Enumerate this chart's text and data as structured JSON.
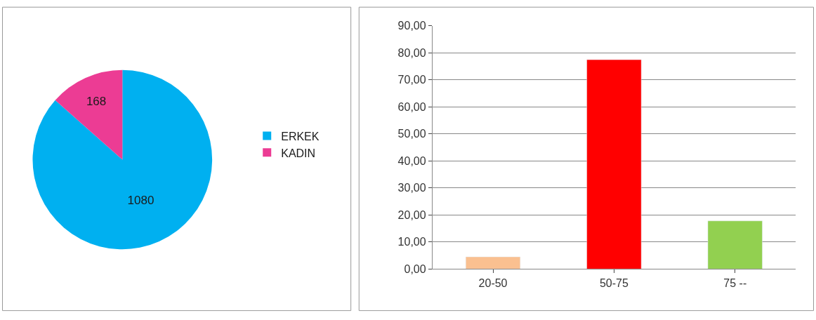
{
  "chart_data": [
    {
      "type": "pie",
      "categories": [
        "ERKEK",
        "KADIN"
      ],
      "values": [
        1080,
        168
      ],
      "colors": [
        "#00b0f0",
        "#ec3c94"
      ],
      "data_labels": true,
      "legend": "right"
    },
    {
      "type": "bar",
      "categories": [
        "20-50",
        "50-75",
        "75 --"
      ],
      "values": [
        4.5,
        77.4,
        17.8
      ],
      "colors": [
        "#fac090",
        "#ff0000",
        "#92d050"
      ],
      "ylim": [
        0,
        90
      ],
      "yticks": [
        {
          "value": 0,
          "label": "0,00"
        },
        {
          "value": 10,
          "label": "10,00"
        },
        {
          "value": 20,
          "label": "20,00"
        },
        {
          "value": 30,
          "label": "30,00"
        },
        {
          "value": 40,
          "label": "40,00"
        },
        {
          "value": 50,
          "label": "50,00"
        },
        {
          "value": 60,
          "label": "60,00"
        },
        {
          "value": 70,
          "label": "70,00"
        },
        {
          "value": 80,
          "label": "80,00"
        },
        {
          "value": 90,
          "label": "90,00"
        }
      ],
      "grid": "y",
      "legend": false
    }
  ]
}
